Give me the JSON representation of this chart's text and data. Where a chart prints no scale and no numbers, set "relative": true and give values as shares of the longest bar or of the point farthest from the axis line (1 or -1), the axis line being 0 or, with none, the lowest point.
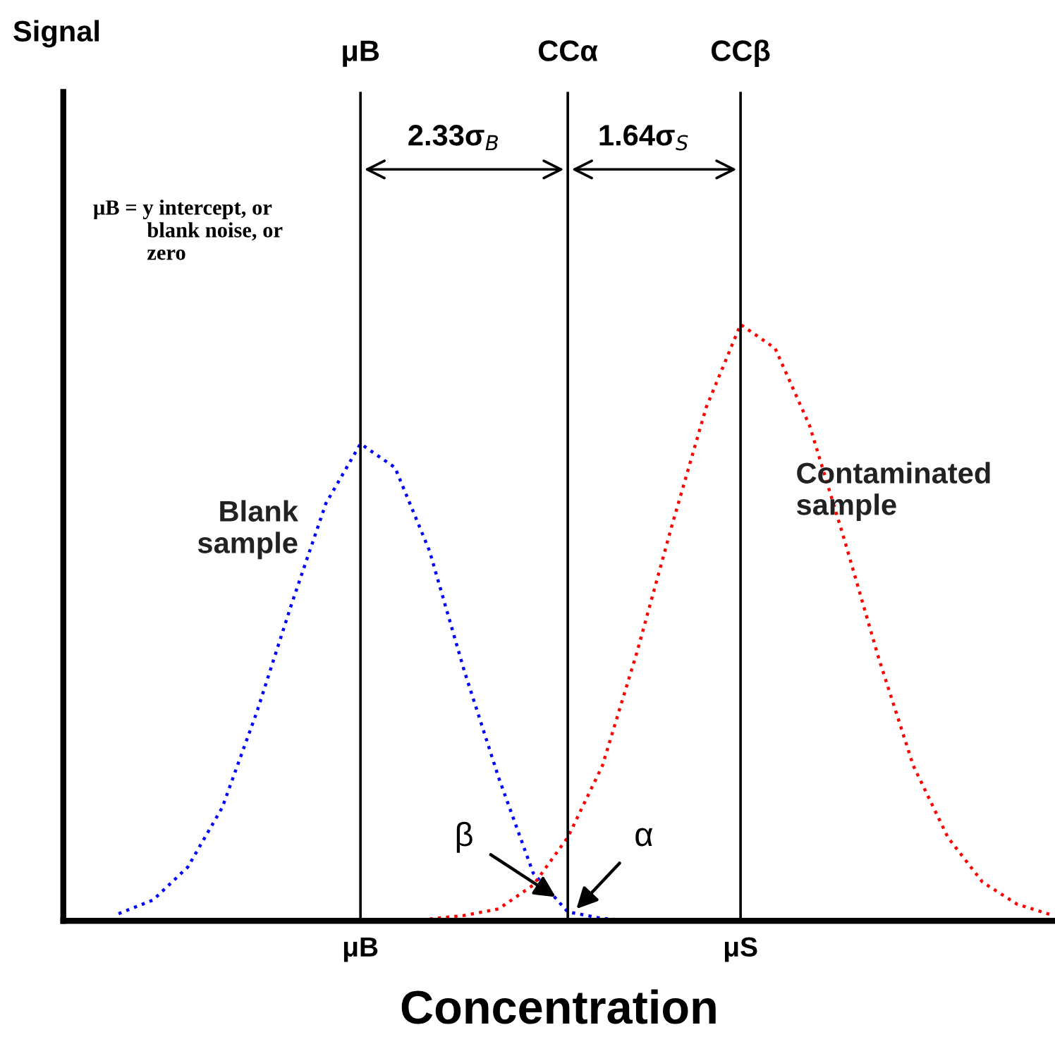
{
  "chart_data": {
    "type": "line",
    "relative": true,
    "xlabel": "Concentration",
    "categories": [
      null,
      null,
      null,
      null,
      null,
      null,
      null,
      null,
      "μB",
      null,
      null,
      null,
      null,
      null,
      null,
      null,
      null,
      null,
      null,
      "μS",
      null,
      null,
      null,
      null,
      null,
      null,
      null,
      null,
      null
    ],
    "line_style": "dotted",
    "marker": "none",
    "series": [
      {
        "name": "Blank sample",
        "color": "#0000ff",
        "values": [
          null,
          0.012,
          0.035,
          0.09,
          0.19,
          0.35,
          0.53,
          0.7,
          0.8,
          0.76,
          0.62,
          0.42,
          0.24,
          0.08,
          0.015,
          0.004,
          0,
          null,
          null,
          null,
          null,
          null,
          null,
          null,
          null,
          null,
          null,
          null,
          null
        ]
      },
      {
        "name": "Contaminated sample",
        "color": "#ff0000",
        "values": [
          null,
          null,
          null,
          null,
          null,
          null,
          null,
          null,
          null,
          null,
          0.003,
          0.009,
          0.02,
          0.06,
          0.14,
          0.26,
          0.45,
          0.66,
          0.86,
          1,
          0.96,
          0.83,
          0.64,
          0.44,
          0.26,
          0.14,
          0.065,
          0.028,
          0.01
        ]
      }
    ],
    "grid": "x",
    "annotations": [
      "Signal",
      "μB",
      "CCα",
      "CCβ",
      "2.33σ$_{B}$",
      "1.64σ$_{S}$",
      "μB = y intercept, or\n          blank noise, or\n          zero",
      "β",
      "α"
    ]
  }
}
